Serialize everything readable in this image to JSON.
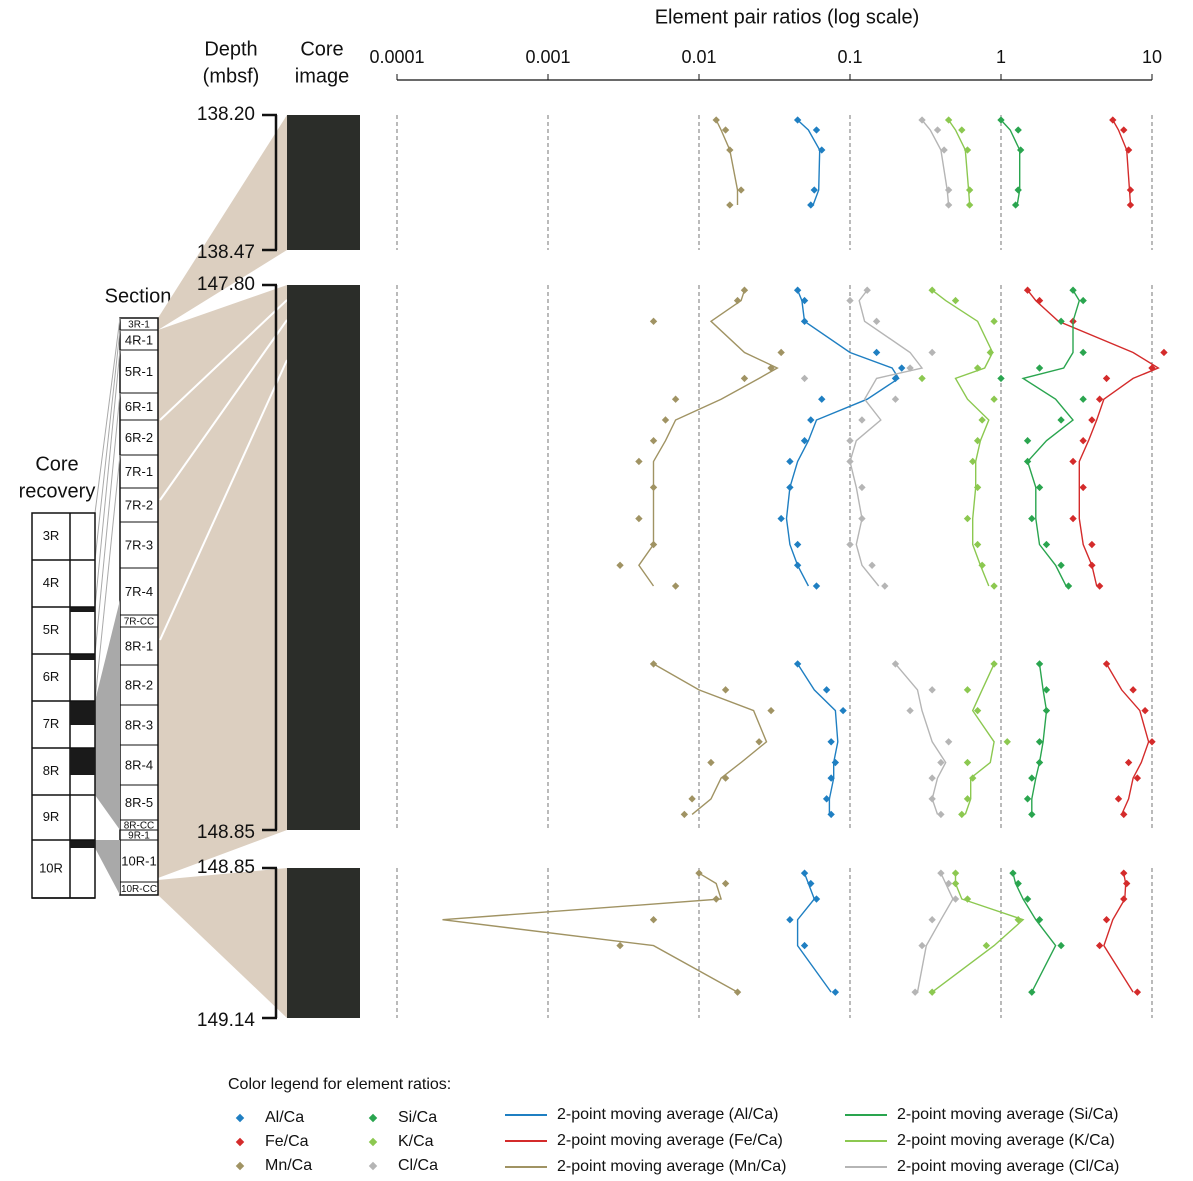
{
  "chart_data": {
    "type": "depth_profile",
    "title": "Element pair ratios (log scale)",
    "log_scale": true,
    "grid": true,
    "xlim": [
      0.0001,
      10
    ],
    "xticks": [
      0.0001,
      0.001,
      0.01,
      0.1,
      1,
      10
    ],
    "depth_label": [
      "Depth",
      "(mbsf)"
    ],
    "core_image_label": [
      "Core",
      "image"
    ],
    "section_label": "Section",
    "sections": [
      "3R-1",
      "4R-1",
      "5R-1",
      "6R-1",
      "6R-2",
      "7R-1",
      "7R-2",
      "7R-3",
      "7R-4",
      "7R-CC",
      "8R-1",
      "8R-2",
      "8R-3",
      "8R-4",
      "8R-5",
      "8R-CC",
      "9R-1",
      "10R-1",
      "10R-CC"
    ],
    "core_recovery_label": [
      "Core",
      "recovery"
    ],
    "cores": [
      "3R",
      "4R",
      "5R",
      "6R",
      "7R",
      "8R",
      "9R",
      "10R"
    ],
    "legend_title": "Color legend for element ratios:",
    "series": [
      {
        "name": "Al/Ca",
        "color": "#1f7fc2",
        "ma_name": "2-point moving average (Al/Ca)"
      },
      {
        "name": "Fe/Ca",
        "color": "#d42b2b",
        "ma_name": "2-point moving average (Fe/Ca)"
      },
      {
        "name": "Mn/Ca",
        "color": "#a09363",
        "ma_name": "2-point moving average (Mn/Ca)"
      },
      {
        "name": "Si/Ca",
        "color": "#2aa54f",
        "ma_name": "2-point moving average (Si/Ca)"
      },
      {
        "name": "K/Ca",
        "color": "#8cc850",
        "ma_name": "2-point moving average (K/Ca)"
      },
      {
        "name": "Cl/Ca",
        "color": "#b5b5b5",
        "ma_name": "2-point moving average (Cl/Ca)"
      }
    ],
    "panels": [
      {
        "depth_range": [
          {
            "value": 138.2,
            "label": "138.20"
          },
          138.47
        ],
        "depths": [
          138.21,
          138.23,
          138.27,
          138.35,
          138.38
        ],
        "series": [
          {
            "values": [
              0.045,
              0.06,
              0.065,
              0.058,
              0.055
            ],
            "ma": [
              0.045,
              0.053,
              0.063,
              0.062,
              0.057
            ]
          },
          {
            "values": [
              5.5,
              6.5,
              7,
              7.2,
              7.2
            ],
            "ma": [
              5.5,
              6,
              6.8,
              7.1,
              7.2
            ]
          },
          {
            "values": [
              0.013,
              0.015,
              0.016,
              0.019,
              0.016
            ],
            "ma": [
              0.013,
              0.014,
              0.016,
              0.018,
              0.018
            ]
          },
          {
            "values": [
              1.0,
              1.3,
              1.35,
              1.3,
              1.25
            ],
            "ma": [
              1.0,
              1.15,
              1.33,
              1.33,
              1.28
            ]
          },
          {
            "values": [
              0.45,
              0.55,
              0.6,
              0.62,
              0.62
            ],
            "ma": [
              0.45,
              0.5,
              0.58,
              0.61,
              0.62
            ]
          },
          {
            "values": [
              0.3,
              0.38,
              0.42,
              0.45,
              0.45
            ],
            "ma": [
              0.3,
              0.34,
              0.4,
              0.44,
              0.45
            ]
          }
        ]
      },
      {
        "depth_range": [
          {
            "value": 147.8,
            "label": "147.80"
          },
          148.85
        ],
        "depths": [
          147.81,
          147.83,
          147.87,
          147.93,
          147.96,
          147.98,
          148.02,
          148.06,
          148.1,
          148.14,
          148.19,
          148.25,
          148.3,
          148.34,
          148.38,
          148.46,
          148.53,
          148.58,
          148.62,
          148.68,
          148.72,
          148.75,
          148.79,
          148.82
        ],
        "series": [
          {
            "values": [
              0.045,
              0.05,
              0.05,
              0.15,
              0.22,
              0.2,
              0.065,
              0.055,
              0.05,
              0.04,
              0.04,
              0.035,
              0.045,
              0.045,
              0.06,
              null,
              0.045,
              0.07,
              0.09,
              0.075,
              0.08,
              0.075,
              0.07,
              0.075
            ],
            "ma": [
              0.045,
              0.048,
              0.05,
              0.1,
              0.19,
              0.21,
              0.13,
              0.06,
              0.053,
              0.045,
              0.04,
              0.038,
              0.04,
              0.045,
              0.053,
              null,
              0.045,
              0.058,
              0.08,
              0.083,
              0.078,
              0.078,
              0.073,
              0.073
            ]
          },
          {
            "values": [
              1.5,
              1.8,
              3,
              12,
              10,
              5,
              4.5,
              4,
              3.5,
              3,
              3.5,
              3,
              4,
              4,
              4.5,
              null,
              5,
              7.5,
              9,
              10,
              7,
              8,
              6,
              6.5
            ],
            "ma": [
              1.5,
              1.7,
              2.4,
              7.5,
              11,
              7.5,
              4.8,
              4.3,
              3.8,
              3.3,
              3.3,
              3.3,
              3.5,
              4,
              4.3,
              null,
              5,
              6.3,
              8.3,
              9.5,
              8.5,
              7.5,
              7,
              6.3
            ]
          },
          {
            "values": [
              0.02,
              0.018,
              0.005,
              0.035,
              0.03,
              0.02,
              0.007,
              0.006,
              0.005,
              0.004,
              0.005,
              0.004,
              0.005,
              0.003,
              0.007,
              null,
              0.005,
              0.015,
              0.03,
              0.025,
              0.012,
              0.015,
              0.009,
              0.008
            ],
            "ma": [
              0.02,
              0.019,
              0.012,
              0.02,
              0.033,
              0.025,
              0.014,
              0.007,
              0.006,
              0.005,
              0.005,
              0.005,
              0.005,
              0.004,
              0.005,
              null,
              0.005,
              0.01,
              0.023,
              0.028,
              0.019,
              0.014,
              0.012,
              0.009
            ]
          },
          {
            "values": [
              3,
              3.5,
              2.5,
              3.5,
              1.8,
              1,
              3.5,
              2.5,
              1.5,
              1.5,
              1.8,
              1.6,
              2,
              2.5,
              2.8,
              null,
              1.8,
              2,
              2,
              1.8,
              1.8,
              1.6,
              1.5,
              1.6
            ],
            "ma": [
              3,
              3.3,
              3,
              3,
              2.6,
              1.4,
              2.3,
              3,
              2,
              1.5,
              1.7,
              1.7,
              1.8,
              2.3,
              2.7,
              null,
              1.8,
              1.9,
              2,
              1.9,
              1.8,
              1.7,
              1.6,
              1.6
            ]
          },
          {
            "values": [
              0.35,
              0.5,
              0.9,
              0.85,
              0.7,
              0.3,
              0.9,
              0.75,
              0.7,
              0.65,
              0.7,
              0.6,
              0.7,
              0.75,
              0.9,
              null,
              0.9,
              0.6,
              0.7,
              1.1,
              0.6,
              0.65,
              0.6,
              0.55
            ],
            "ma": [
              0.35,
              0.43,
              0.7,
              0.88,
              0.78,
              0.5,
              0.6,
              0.83,
              0.73,
              0.68,
              0.68,
              0.65,
              0.65,
              0.73,
              0.83,
              null,
              0.9,
              0.75,
              0.65,
              0.9,
              0.85,
              0.63,
              0.63,
              0.58
            ]
          },
          {
            "values": [
              0.13,
              0.1,
              0.15,
              0.35,
              0.25,
              0.05,
              0.2,
              0.12,
              0.1,
              0.1,
              0.12,
              0.12,
              0.1,
              0.14,
              0.17,
              null,
              0.2,
              0.35,
              0.25,
              0.45,
              0.4,
              0.35,
              0.35,
              0.4
            ],
            "ma": [
              0.13,
              0.115,
              0.125,
              0.25,
              0.3,
              0.15,
              0.125,
              0.16,
              0.11,
              0.1,
              0.11,
              0.12,
              0.11,
              0.12,
              0.155,
              null,
              0.2,
              0.28,
              0.3,
              0.35,
              0.43,
              0.38,
              0.35,
              0.38
            ]
          }
        ]
      },
      {
        "depth_range": [
          148.85,
          149.14
        ],
        "depths": [
          148.86,
          148.88,
          148.91,
          148.95,
          149.0,
          149.09
        ],
        "series": [
          {
            "values": [
              0.05,
              0.055,
              0.06,
              0.04,
              0.05,
              0.08
            ],
            "ma": [
              0.05,
              0.053,
              0.058,
              0.045,
              0.045,
              0.075
            ]
          },
          {
            "values": [
              6.5,
              6.8,
              6.5,
              5,
              4.5,
              8
            ],
            "ma": [
              6.5,
              6.7,
              6.6,
              5.5,
              4.8,
              7.5
            ]
          },
          {
            "values": [
              0.01,
              0.015,
              0.013,
              0.005,
              0.003,
              0.018
            ],
            "ma": [
              0.01,
              0.013,
              0.014,
              0.0002,
              0.005,
              0.018
            ]
          },
          {
            "values": [
              1.2,
              1.3,
              1.5,
              1.8,
              2.5,
              1.6
            ],
            "ma": [
              1.2,
              1.25,
              1.4,
              1.7,
              2.3,
              1.6
            ]
          },
          {
            "values": [
              0.5,
              0.5,
              0.6,
              1.3,
              0.8,
              0.35
            ],
            "ma": [
              0.5,
              0.5,
              0.55,
              1.4,
              0.9,
              0.35
            ]
          },
          {
            "values": [
              0.4,
              0.45,
              0.5,
              0.35,
              0.3,
              0.27
            ],
            "ma": [
              0.4,
              0.43,
              0.48,
              0.4,
              0.32,
              0.28
            ]
          }
        ]
      }
    ]
  }
}
